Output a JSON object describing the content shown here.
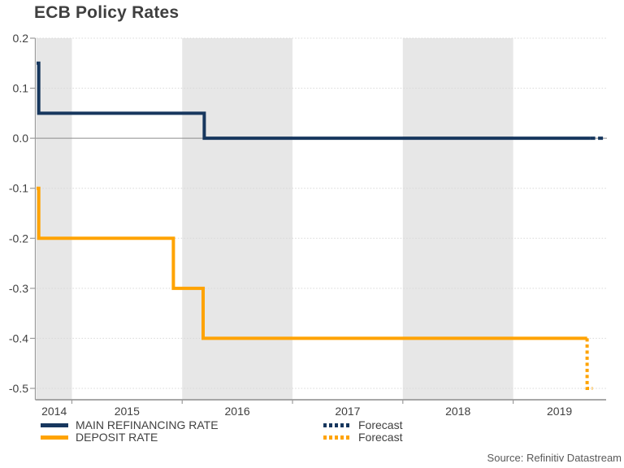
{
  "source": "Source: Refinitiv Datastream",
  "colors": {
    "main_refinancing": "#17375E",
    "deposit": "#FFA300",
    "band": "#E7E7E7",
    "grid": "#D8D8D8",
    "axis": "#9B9B9B",
    "zero_line": "#8C8C8C",
    "tick_text": "#404040",
    "title_text": "#3F3F3F",
    "source_text": "#595959"
  },
  "legend": {
    "items": [
      {
        "label": "MAIN REFINANCING RATE",
        "color": "#17375E",
        "style": "solid"
      },
      {
        "label": "DEPOSIT RATE",
        "color": "#FFA300",
        "style": "solid"
      },
      {
        "label": "Forecast",
        "color": "#17375E",
        "style": "dotted"
      },
      {
        "label": "Forecast",
        "color": "#FFA300",
        "style": "dotted"
      }
    ]
  },
  "chart_data": {
    "type": "line",
    "title": "ECB Policy Rates",
    "xlabel": "",
    "ylabel": "",
    "x_domain": [
      2014.68,
      2019.85
    ],
    "y_domain": [
      -0.5,
      0.2
    ],
    "y_ticks": [
      0.2,
      0.1,
      0.0,
      -0.1,
      -0.2,
      -0.3,
      -0.4,
      -0.5
    ],
    "zero_line": 0,
    "grid": "dotted-horizontal",
    "x_tick_years": [
      2015,
      2016,
      2017,
      2018,
      2019
    ],
    "x_year_labels": [
      {
        "label": "2014",
        "center": 2014.84
      },
      {
        "label": "2015",
        "center": 2015.5
      },
      {
        "label": "2016",
        "center": 2016.5
      },
      {
        "label": "2017",
        "center": 2017.5
      },
      {
        "label": "2018",
        "center": 2018.5
      },
      {
        "label": "2019",
        "center": 2019.42
      }
    ],
    "shaded_periods": [
      [
        2014.68,
        2015
      ],
      [
        2016,
        2017
      ],
      [
        2018,
        2019
      ]
    ],
    "legend_position": "bottom",
    "series": [
      {
        "name": "MAIN REFINANCING RATE",
        "color": "#17375E",
        "style": "solid",
        "points": [
          [
            2014.68,
            0.15
          ],
          [
            2014.7,
            0.15
          ],
          [
            2014.7,
            0.05
          ],
          [
            2016.2,
            0.05
          ],
          [
            2016.2,
            0.0
          ],
          [
            2019.7,
            0.0
          ]
        ]
      },
      {
        "name": "Forecast (main refinancing)",
        "color": "#17375E",
        "style": "dashed",
        "points": [
          [
            2019.7,
            0.0
          ],
          [
            2019.84,
            0.0
          ]
        ]
      },
      {
        "name": "DEPOSIT RATE",
        "color": "#FFA300",
        "style": "solid",
        "points": [
          [
            2014.68,
            -0.1
          ],
          [
            2014.7,
            -0.1
          ],
          [
            2014.7,
            -0.2
          ],
          [
            2015.92,
            -0.2
          ],
          [
            2015.92,
            -0.3
          ],
          [
            2016.19,
            -0.3
          ],
          [
            2016.19,
            -0.4
          ],
          [
            2019.67,
            -0.4
          ]
        ]
      },
      {
        "name": "Forecast (deposit)",
        "color": "#FFA300",
        "style": "dotted",
        "points": [
          [
            2019.67,
            -0.4
          ],
          [
            2019.67,
            -0.5
          ],
          [
            2019.72,
            -0.5
          ]
        ]
      }
    ]
  }
}
